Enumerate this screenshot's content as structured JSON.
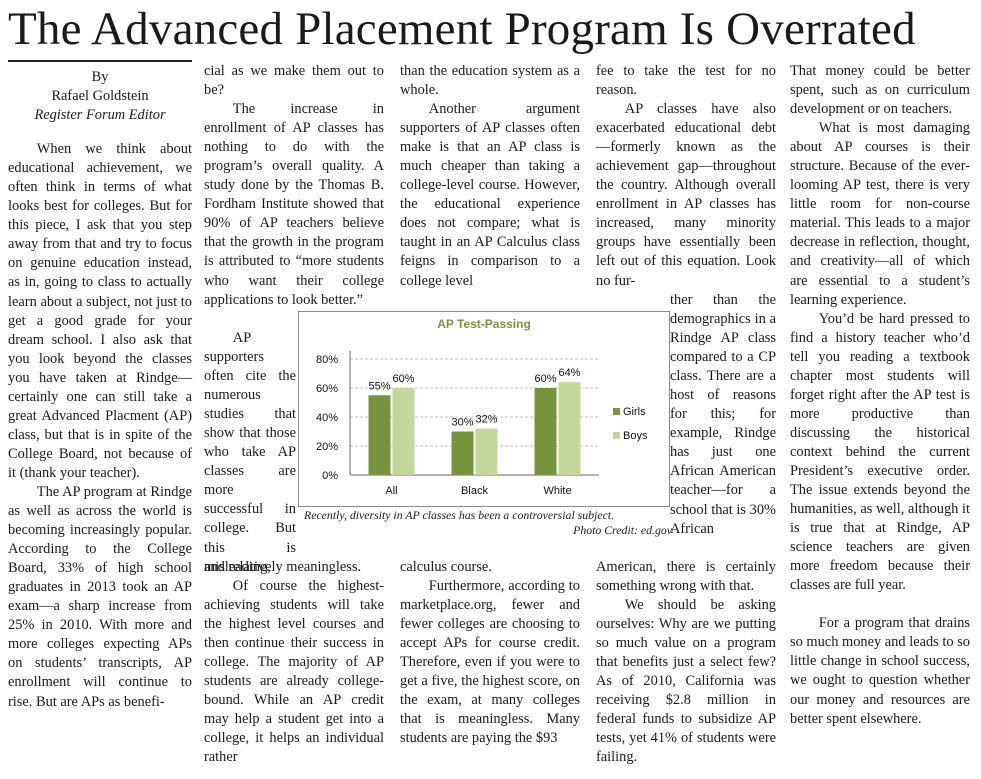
{
  "headline": "The Advanced Placement Program Is Overrated",
  "byline": {
    "by": "By",
    "author": "Rafael Goldstein",
    "role": "Register Forum Editor"
  },
  "columns": {
    "col1": [
      "When we think about educational achievement, we often think in terms of what looks best for colleges. But for this piece, I ask that you step away from that and try to focus on genuine education instead, as in, going to class to actually learn about a subject, not just to get a good grade for your dream school. I also ask that you look beyond the classes you have taken at Rindge—certainly one can still take a great Advanced Placment (AP) class, but that is in spite of the College Board, not because of it (thank your teacher).",
      "The AP program at Rindge as well as across the world is becoming increasingly popular. According to the College Board, 33% of high school graduates in 2013 took an AP exam—a sharp increase from 25% in 2010. With more and more colleges expecting APs on students’ transcripts, AP enrollment will continue to rise. But are APs as benefi-"
    ],
    "col2_top": [
      "cial as we make them out to be?",
      "The increase in enrollment of AP classes has nothing to do with the program’s overall quality. A study done by the Thomas B. Fordham Institute showed that 90% of AP teachers believe that the growth in the program is attributed to “more students who want their college applications to look better.”"
    ],
    "col2_side": "AP supporters often cite the numerous studies that show that those who take AP classes are more successful in college. But this is misleading,",
    "col3_top": [
      "than the education system as a whole.",
      "Another argument supporters of AP classes often make is that an AP class is much cheaper than taking a college-level course. However, the educational experience does not compare; what is taught in an AP Calculus class feigns in comparison to a college level"
    ],
    "col4_top": [
      "fee to take the test for no reason.",
      "AP classes have also exacerbated educational debt—formerly known as the achievement gap—throughout the country. Although overall enrollment in AP classes has increased, many minority groups have essentially been left out of this equation. Look no fur-"
    ],
    "col4_side": "ther than the demographics in a Rindge AP class compared to a CP class. There are a host of reasons for this; for example, Rindge has just one African American teacher—for a school that is 30% African",
    "col2_bottom": [
      "and relatively meaningless.",
      "Of course the highest-achieving students will take the highest level courses and then continue their success in college. The majority of AP students are already college-bound. While an AP credit may help a student get into a college, it helps an individual rather"
    ],
    "col3_bottom": [
      "calculus course.",
      "Furthermore, according to marketplace.org, fewer and fewer colleges are choosing to accept APs for course credit. Therefore, even if you were to get a five, the highest score, on the exam, at many colleges that is meaningless. Many students are paying the $93"
    ],
    "col4_bottom": [
      "American, there is certainly something wrong with that.",
      "We should be asking ourselves: Why are we putting so much value on a program that benefits just a select few? As of 2010, California was receiving $2.8 million in federal funds to subsidize AP tests, yet 41% of students were failing."
    ],
    "col5": [
      "That money could be better spent, such as on curriculum development or on teachers.",
      "What is most damaging about AP courses is their structure. Because of the ever-looming AP test, there is very little room for non-course material. This leads to a major decrease in reflection, thought, and creativity—all of which are essential to a student’s learning experience.",
      "You’d be hard pressed to find a history teacher who’d tell you reading a textbook chapter most students will forget right after the AP test is more productive than discussing the historical context behind the current President’s executive order. The issue extends beyond the humanities, as well, although it is true that at Rindge, AP science teachers are given more freedom because their classes are full year.",
      "For a program that drains so much money and leads to so little change in school success, we ought to question whether our money and resources are better spent elsewhere."
    ]
  },
  "caption": {
    "text": "Recently, diversity in AP classes has been a controversial subject.",
    "credit": "Photo Credit: ed.gov"
  },
  "chart_data": {
    "type": "bar",
    "title": "AP Test-Passing",
    "categories": [
      "All",
      "Black",
      "White"
    ],
    "series": [
      {
        "name": "Girls",
        "values": [
          55,
          30,
          60
        ],
        "labels": [
          "55%",
          "30%",
          "60%"
        ],
        "color": "#77933c"
      },
      {
        "name": "Boys",
        "values": [
          60,
          32,
          64
        ],
        "labels": [
          "60%",
          "32%",
          "64%"
        ],
        "color": "#c3d69b"
      }
    ],
    "yticks": [
      "0%",
      "20%",
      "40%",
      "60%",
      "80%"
    ],
    "ylim": [
      0,
      80
    ],
    "grid": true,
    "legend": "right",
    "title_color": "#77933c"
  }
}
